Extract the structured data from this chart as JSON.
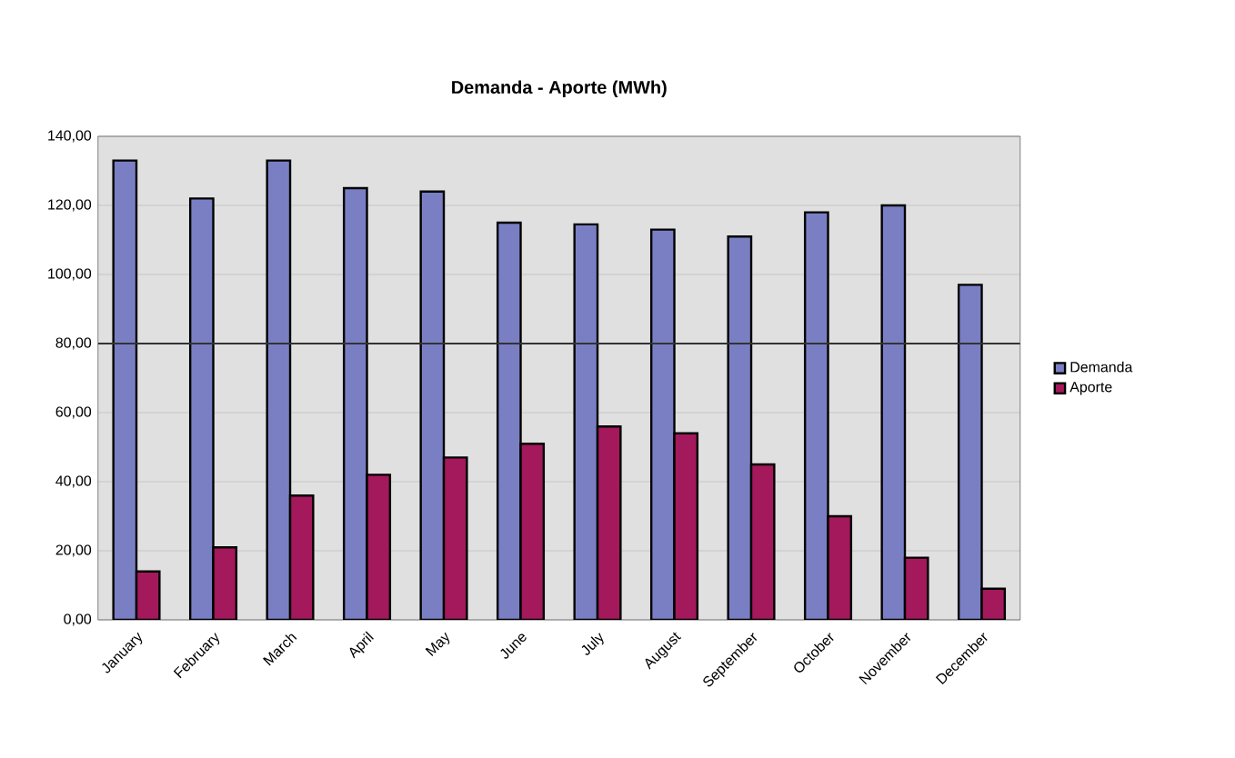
{
  "chart_data": {
    "type": "bar",
    "title": "Demanda - Aporte (MWh)",
    "categories": [
      "January",
      "February",
      "March",
      "April",
      "May",
      "June",
      "July",
      "August",
      "September",
      "October",
      "November",
      "December"
    ],
    "series": [
      {
        "name": "Demanda",
        "color": "#7a7fc4",
        "values": [
          133,
          122,
          133,
          125,
          124,
          115,
          114.5,
          113,
          111,
          118,
          120,
          97
        ]
      },
      {
        "name": "Aporte",
        "color": "#a3195b",
        "values": [
          14,
          21,
          36,
          42,
          47,
          51,
          56,
          54,
          45,
          30,
          18,
          9
        ]
      }
    ],
    "ylim": [
      0,
      140
    ],
    "yticks": [
      {
        "value": 0,
        "label": "0,00"
      },
      {
        "value": 20,
        "label": "20,00"
      },
      {
        "value": 40,
        "label": "40,00"
      },
      {
        "value": 60,
        "label": "60,00"
      },
      {
        "value": 80,
        "label": "80,00"
      },
      {
        "value": 100,
        "label": "100,00"
      },
      {
        "value": 120,
        "label": "120,00"
      },
      {
        "value": 140,
        "label": "140,00"
      }
    ],
    "ref_lines": [
      {
        "axis": "y",
        "value": 80,
        "color": "#333333"
      }
    ],
    "grid": "y",
    "legend": "right"
  }
}
